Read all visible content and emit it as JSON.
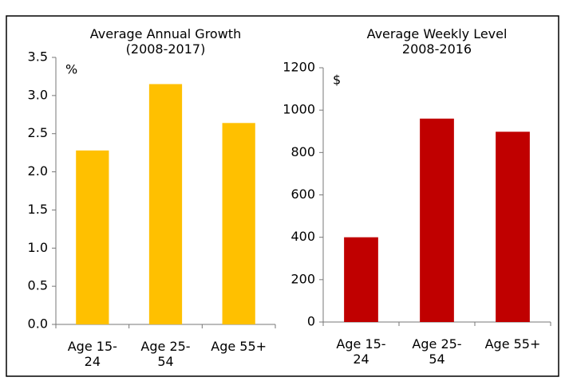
{
  "chart_data": [
    {
      "type": "bar",
      "title": "Average Annual Growth\n(2008-2017)",
      "unit": "%",
      "categories": [
        "Age 15-24",
        "Age 25-54",
        "Age 55+"
      ],
      "values": [
        2.28,
        3.15,
        2.64
      ],
      "color": "#ffc000",
      "ylim": [
        0,
        3.5
      ],
      "yticks": [
        {
          "value": 0,
          "label": "0.0"
        },
        0.5,
        {
          "value": 1,
          "label": "1.0"
        },
        1.5,
        {
          "value": 2,
          "label": "2.0"
        },
        2.5,
        {
          "value": 3,
          "label": "3.0"
        },
        3.5
      ]
    },
    {
      "type": "bar",
      "title": "Average Weekly Level\n2008-2016",
      "unit": "$",
      "categories": [
        "Age 15-24",
        "Age 25-54",
        "Age 55+"
      ],
      "values": [
        400,
        960,
        898
      ],
      "color": "#c00000",
      "ylim": [
        0,
        1200
      ],
      "yticks": [
        0,
        200,
        400,
        600,
        800,
        1000,
        1200
      ]
    }
  ]
}
